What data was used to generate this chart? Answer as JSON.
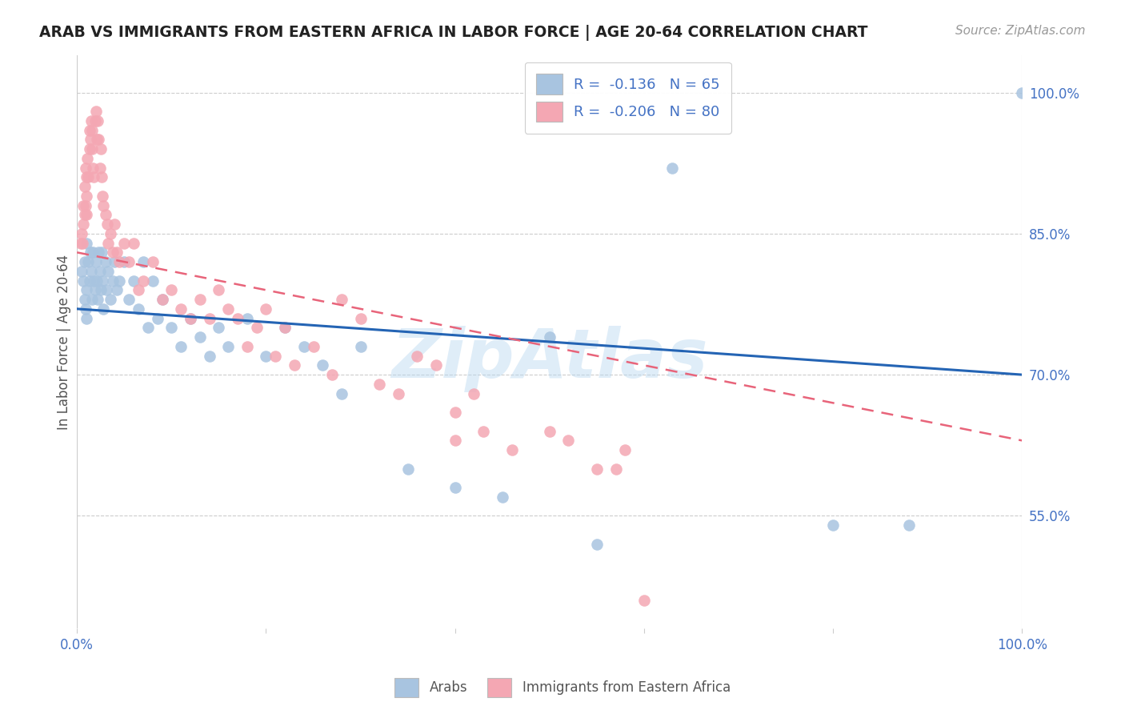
{
  "title": "ARAB VS IMMIGRANTS FROM EASTERN AFRICA IN LABOR FORCE | AGE 20-64 CORRELATION CHART",
  "source": "Source: ZipAtlas.com",
  "ylabel": "In Labor Force | Age 20-64",
  "ytick_labels": [
    "55.0%",
    "70.0%",
    "85.0%",
    "100.0%"
  ],
  "ytick_values": [
    0.55,
    0.7,
    0.85,
    1.0
  ],
  "xlim": [
    0.0,
    1.0
  ],
  "ylim": [
    0.43,
    1.04
  ],
  "legend_blue_label": "R =  -0.136   N = 65",
  "legend_pink_label": "R =  -0.206   N = 80",
  "bottom_legend_blue": "Arabs",
  "bottom_legend_pink": "Immigrants from Eastern Africa",
  "blue_color": "#a8c4e0",
  "pink_color": "#f4a7b3",
  "blue_line_color": "#2464b4",
  "pink_line_color": "#e8647a",
  "blue_line_y0": 0.77,
  "blue_line_y1": 0.7,
  "pink_line_y0": 0.83,
  "pink_line_y1": 0.63,
  "blue_x": [
    0.005,
    0.007,
    0.008,
    0.008,
    0.009,
    0.01,
    0.01,
    0.01,
    0.012,
    0.013,
    0.014,
    0.015,
    0.016,
    0.017,
    0.018,
    0.019,
    0.02,
    0.021,
    0.022,
    0.023,
    0.024,
    0.025,
    0.026,
    0.027,
    0.028,
    0.03,
    0.031,
    0.033,
    0.035,
    0.038,
    0.04,
    0.042,
    0.045,
    0.05,
    0.055,
    0.06,
    0.065,
    0.07,
    0.075,
    0.08,
    0.085,
    0.09,
    0.1,
    0.11,
    0.12,
    0.13,
    0.14,
    0.15,
    0.16,
    0.18,
    0.2,
    0.22,
    0.24,
    0.26,
    0.28,
    0.3,
    0.35,
    0.4,
    0.45,
    0.5,
    0.55,
    0.63,
    0.8,
    0.88,
    1.0
  ],
  "blue_y": [
    0.81,
    0.8,
    0.78,
    0.82,
    0.77,
    0.84,
    0.79,
    0.76,
    0.82,
    0.8,
    0.83,
    0.81,
    0.78,
    0.83,
    0.8,
    0.79,
    0.82,
    0.8,
    0.78,
    0.83,
    0.81,
    0.79,
    0.83,
    0.8,
    0.77,
    0.82,
    0.79,
    0.81,
    0.78,
    0.8,
    0.82,
    0.79,
    0.8,
    0.82,
    0.78,
    0.8,
    0.77,
    0.82,
    0.75,
    0.8,
    0.76,
    0.78,
    0.75,
    0.73,
    0.76,
    0.74,
    0.72,
    0.75,
    0.73,
    0.76,
    0.72,
    0.75,
    0.73,
    0.71,
    0.68,
    0.73,
    0.6,
    0.58,
    0.57,
    0.74,
    0.52,
    0.92,
    0.54,
    0.54,
    1.0
  ],
  "pink_x": [
    0.004,
    0.005,
    0.006,
    0.007,
    0.007,
    0.008,
    0.008,
    0.009,
    0.009,
    0.01,
    0.01,
    0.01,
    0.011,
    0.012,
    0.013,
    0.013,
    0.014,
    0.015,
    0.016,
    0.016,
    0.017,
    0.018,
    0.019,
    0.02,
    0.021,
    0.022,
    0.023,
    0.024,
    0.025,
    0.026,
    0.027,
    0.028,
    0.03,
    0.032,
    0.033,
    0.035,
    0.038,
    0.04,
    0.042,
    0.045,
    0.05,
    0.055,
    0.06,
    0.065,
    0.07,
    0.08,
    0.09,
    0.1,
    0.11,
    0.12,
    0.13,
    0.14,
    0.15,
    0.16,
    0.17,
    0.18,
    0.19,
    0.2,
    0.21,
    0.22,
    0.23,
    0.25,
    0.27,
    0.28,
    0.3,
    0.32,
    0.34,
    0.36,
    0.38,
    0.4,
    0.4,
    0.42,
    0.43,
    0.46,
    0.5,
    0.52,
    0.55,
    0.57,
    0.58,
    0.6
  ],
  "pink_y": [
    0.84,
    0.85,
    0.84,
    0.86,
    0.88,
    0.87,
    0.9,
    0.88,
    0.92,
    0.91,
    0.89,
    0.87,
    0.93,
    0.91,
    0.96,
    0.94,
    0.95,
    0.97,
    0.96,
    0.94,
    0.92,
    0.91,
    0.97,
    0.98,
    0.95,
    0.97,
    0.95,
    0.92,
    0.94,
    0.91,
    0.89,
    0.88,
    0.87,
    0.86,
    0.84,
    0.85,
    0.83,
    0.86,
    0.83,
    0.82,
    0.84,
    0.82,
    0.84,
    0.79,
    0.8,
    0.82,
    0.78,
    0.79,
    0.77,
    0.76,
    0.78,
    0.76,
    0.79,
    0.77,
    0.76,
    0.73,
    0.75,
    0.77,
    0.72,
    0.75,
    0.71,
    0.73,
    0.7,
    0.78,
    0.76,
    0.69,
    0.68,
    0.72,
    0.71,
    0.66,
    0.63,
    0.68,
    0.64,
    0.62,
    0.64,
    0.63,
    0.6,
    0.6,
    0.62,
    0.46
  ]
}
